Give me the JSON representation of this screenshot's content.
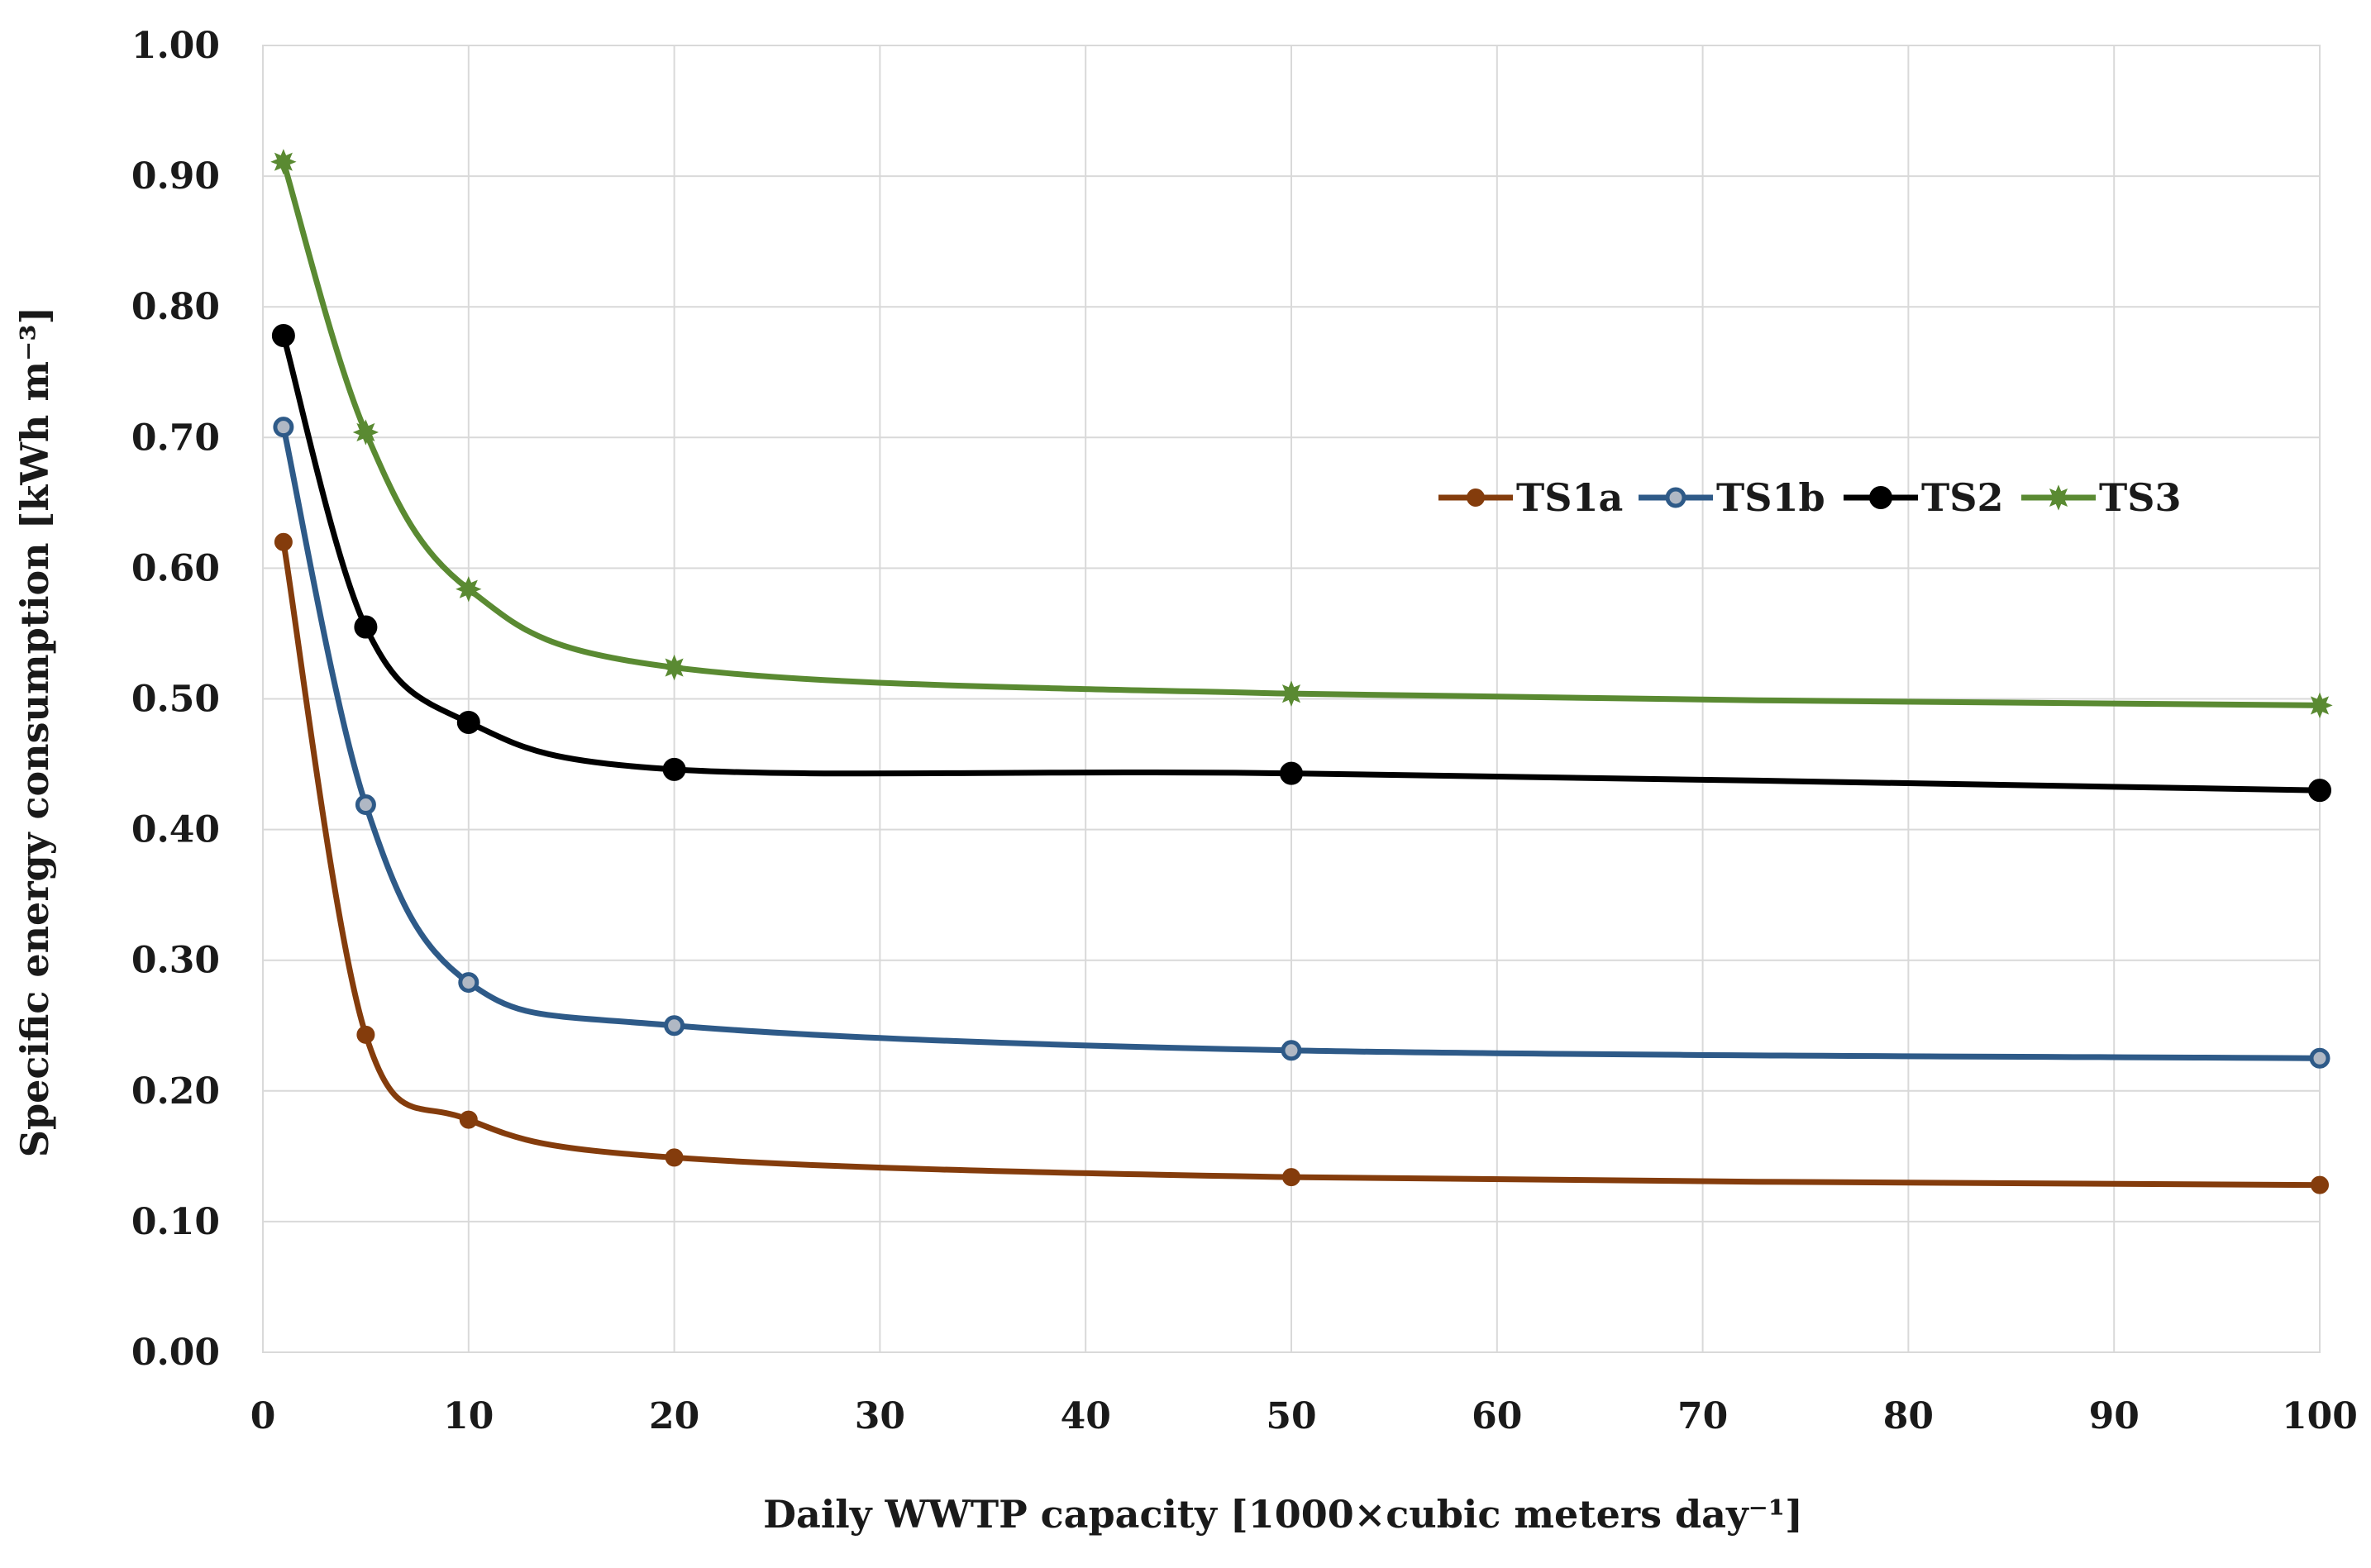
{
  "chart_data": {
    "type": "line",
    "title": "",
    "xlabel": "Daily WWTP capacity [1000×cubic meters day⁻¹]",
    "ylabel": "Specific energy consumption [kWh m⁻³]",
    "xlim": [
      0,
      100
    ],
    "ylim": [
      0,
      1.0
    ],
    "x_ticks": [
      0,
      10,
      20,
      30,
      40,
      50,
      60,
      70,
      80,
      90,
      100
    ],
    "y_ticks": [
      0.0,
      0.1,
      0.2,
      0.3,
      0.4,
      0.5,
      0.6,
      0.7,
      0.8,
      0.9,
      1.0
    ],
    "x_tick_labels": [
      "0",
      "10",
      "20",
      "30",
      "40",
      "50",
      "60",
      "70",
      "80",
      "90",
      "100"
    ],
    "y_tick_labels": [
      "0.00",
      "0.10",
      "0.20",
      "0.30",
      "0.40",
      "0.50",
      "0.60",
      "0.70",
      "0.80",
      "0.90",
      "1.00"
    ],
    "grid": true,
    "legend_position": "upper-right-center",
    "x": [
      1,
      5,
      10,
      20,
      50,
      100
    ],
    "series": [
      {
        "name": "TS1a",
        "color": "#843c0c",
        "marker": "dot",
        "values": [
          0.62,
          0.243,
          0.178,
          0.149,
          0.134,
          0.128
        ]
      },
      {
        "name": "TS1b",
        "color": "#2e5a88",
        "marker": "ring",
        "values": [
          0.708,
          0.419,
          0.283,
          0.25,
          0.231,
          0.225
        ]
      },
      {
        "name": "TS2",
        "color": "#000000",
        "marker": "dot",
        "values": [
          0.778,
          0.555,
          0.482,
          0.446,
          0.443,
          0.43
        ]
      },
      {
        "name": "TS3",
        "color": "#5a8a32",
        "marker": "star",
        "values": [
          0.911,
          0.704,
          0.584,
          0.524,
          0.504,
          0.495
        ]
      }
    ]
  }
}
